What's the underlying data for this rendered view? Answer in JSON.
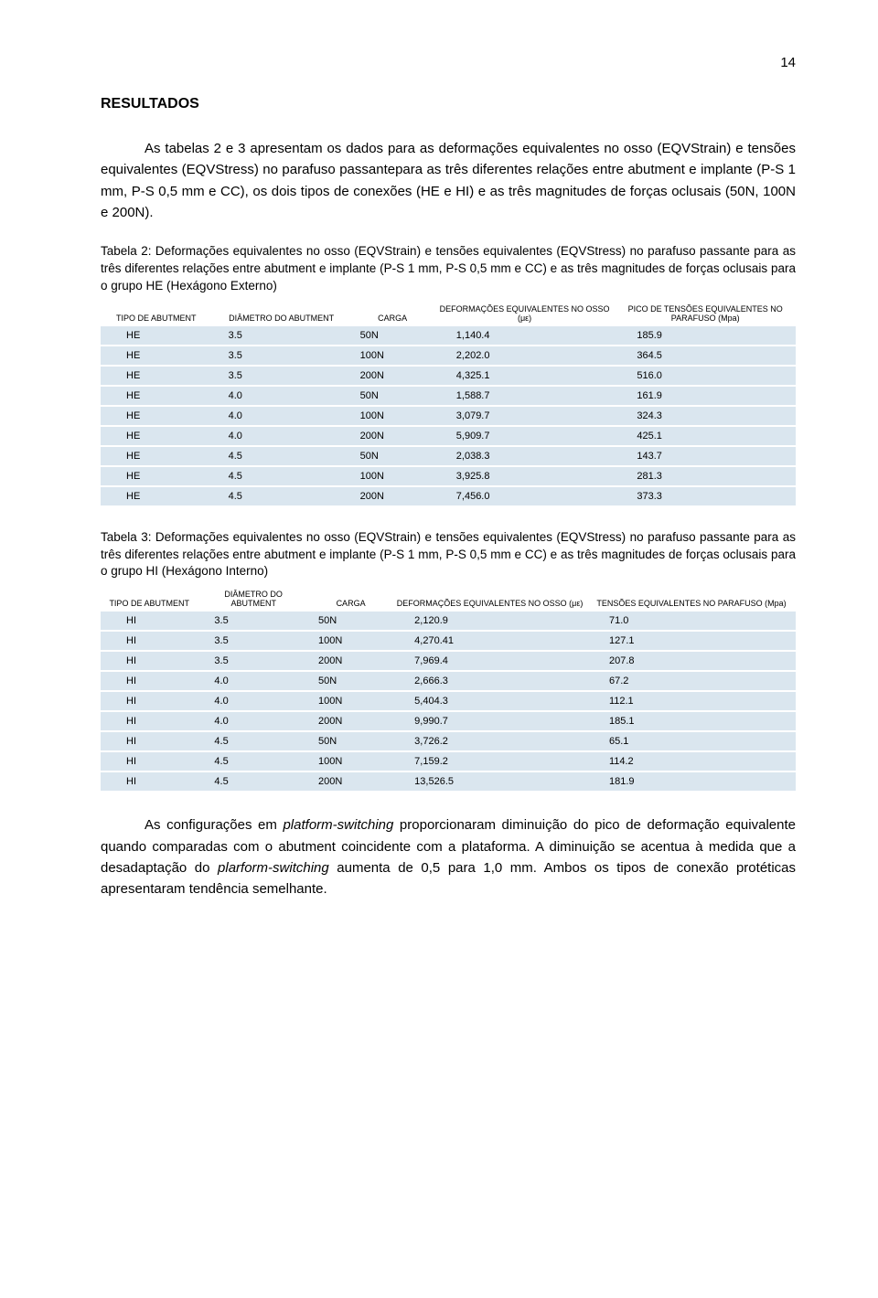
{
  "page_number": "14",
  "section_title": "RESULTADOS",
  "intro_paragraph": "As tabelas 2 e 3 apresentam os dados para as deformações equivalentes no osso (EQVStrain) e tensões equivalentes (EQVStress) no parafuso passantepara as três diferentes relações entre abutment e implante (P-S 1 mm, P-S 0,5 mm e CC), os dois tipos de conexões (HE e HI) e as três magnitudes de forças oclusais (50N, 100N e 200N).",
  "table2": {
    "caption": "Tabela 2: Deformações equivalentes no osso (EQVStrain) e tensões equivalentes (EQVStress) no parafuso passante para as três diferentes relações entre abutment e implante (P-S 1 mm, P-S 0,5 mm e CC) e as três magnitudes de forças oclusais para o grupo HE (Hexágono Externo)",
    "columns": {
      "type": "TIPO DE ABUTMENT",
      "diameter": "DIÂMETRO DO ABUTMENT",
      "load": "CARGA",
      "strain": "DEFORMAÇÕES EQUIVALENTES NO OSSO (με)",
      "stress": "PICO DE TENSÕES EQUIVALENTES NO PARAFUSO (Mpa)"
    },
    "col_widths": [
      "16%",
      "20%",
      "12%",
      "26%",
      "26%"
    ],
    "band_color": "#dae6ef",
    "rows": [
      {
        "type": "HE",
        "diam": "3.5",
        "load": "50N",
        "strain": "1,140.4",
        "stress": "185.9"
      },
      {
        "type": "HE",
        "diam": "3.5",
        "load": "100N",
        "strain": "2,202.0",
        "stress": "364.5"
      },
      {
        "type": "HE",
        "diam": "3.5",
        "load": "200N",
        "strain": "4,325.1",
        "stress": "516.0"
      },
      {
        "type": "HE",
        "diam": "4.0",
        "load": "50N",
        "strain": "1,588.7",
        "stress": "161.9"
      },
      {
        "type": "HE",
        "diam": "4.0",
        "load": "100N",
        "strain": "3,079.7",
        "stress": "324.3"
      },
      {
        "type": "HE",
        "diam": "4.0",
        "load": "200N",
        "strain": "5,909.7",
        "stress": "425.1"
      },
      {
        "type": "HE",
        "diam": "4.5",
        "load": "50N",
        "strain": "2,038.3",
        "stress": "143.7"
      },
      {
        "type": "HE",
        "diam": "4.5",
        "load": "100N",
        "strain": "3,925.8",
        "stress": "281.3"
      },
      {
        "type": "HE",
        "diam": "4.5",
        "load": "200N",
        "strain": "7,456.0",
        "stress": "373.3"
      }
    ]
  },
  "table3": {
    "caption": "Tabela 3: Deformações equivalentes no osso (EQVStrain) e tensões equivalentes (EQVStress) no parafuso passante para as três diferentes relações entre abutment e implante (P-S 1 mm, P-S 0,5 mm e CC) e as três magnitudes de forças oclusais para o grupo HI (Hexágono Interno)",
    "columns": {
      "type": "TIPO DE ABUTMENT",
      "diameter": "DIÂMETRO DO ABUTMENT",
      "load": "CARGA",
      "strain": "DEFORMAÇÕES EQUIVALENTES NO OSSO (με)",
      "stress": "TENSÕES EQUIVALENTES NO PARAFUSO (Mpa)"
    },
    "col_widths": [
      "14%",
      "16%",
      "12%",
      "28%",
      "30%"
    ],
    "band_color": "#dae6ef",
    "rows": [
      {
        "type": "HI",
        "diam": "3.5",
        "load": "50N",
        "strain": "2,120.9",
        "stress": "71.0"
      },
      {
        "type": "HI",
        "diam": "3.5",
        "load": "100N",
        "strain": "4,270.41",
        "stress": "127.1"
      },
      {
        "type": "HI",
        "diam": "3.5",
        "load": "200N",
        "strain": "7,969.4",
        "stress": "207.8"
      },
      {
        "type": "HI",
        "diam": "4.0",
        "load": "50N",
        "strain": "2,666.3",
        "stress": "67.2"
      },
      {
        "type": "HI",
        "diam": "4.0",
        "load": "100N",
        "strain": "5,404.3",
        "stress": "112.1"
      },
      {
        "type": "HI",
        "diam": "4.0",
        "load": "200N",
        "strain": "9,990.7",
        "stress": "185.1"
      },
      {
        "type": "HI",
        "diam": "4.5",
        "load": "50N",
        "strain": "3,726.2",
        "stress": "65.1"
      },
      {
        "type": "HI",
        "diam": "4.5",
        "load": "100N",
        "strain": "7,159.2",
        "stress": "114.2"
      },
      {
        "type": "HI",
        "diam": "4.5",
        "load": "200N",
        "strain": "13,526.5",
        "stress": "181.9"
      }
    ]
  },
  "closing_paragraph_parts": {
    "p1a": "As configurações em ",
    "p1_italic1": "platform-switching",
    "p1b": " proporcionaram diminuição do pico de deformação equivalente quando comparadas com o abutment coincidente com a plataforma. A diminuição se acentua à medida que a desadaptação do ",
    "p1_italic2": "plarform-switching",
    "p1c": " aumenta de 0,5 para 1,0 mm. Ambos os tipos de conexão protéticas apresentaram tendência semelhante."
  }
}
